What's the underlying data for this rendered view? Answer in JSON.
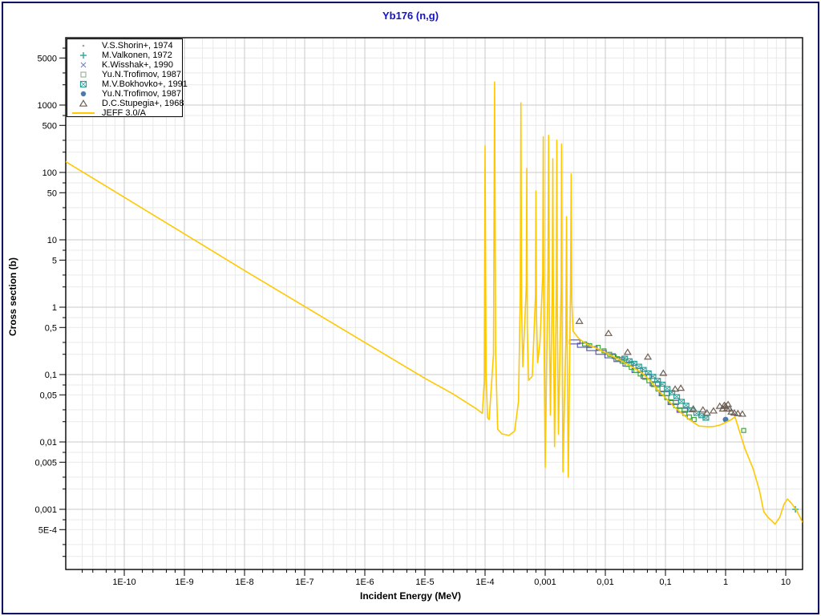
{
  "window": {
    "border_color": "#000066",
    "background": "#ffffff"
  },
  "title": {
    "text": "Yb176 (n,g)",
    "color": "#1313cd"
  },
  "axes": {
    "x": {
      "label": "Incident Energy (MeV)",
      "scale": "log",
      "min": 1e-11,
      "max": 19.1,
      "ticks": [
        {
          "exp": -10,
          "label": "1E-10"
        },
        {
          "exp": -9,
          "label": "1E-9"
        },
        {
          "exp": -8,
          "label": "1E-8"
        },
        {
          "exp": -7,
          "label": "1E-7"
        },
        {
          "exp": -6,
          "label": "1E-6"
        },
        {
          "exp": -5,
          "label": "1E-5"
        },
        {
          "exp": -4,
          "label": "1E-4"
        },
        {
          "exp": -3,
          "label": "0,001"
        },
        {
          "exp": -2,
          "label": "0,01"
        },
        {
          "exp": -1,
          "label": "0,1"
        },
        {
          "exp": 0,
          "label": "1"
        },
        {
          "exp": 1,
          "label": "10"
        }
      ]
    },
    "y": {
      "label": "Cross section (b)",
      "scale": "log",
      "min": 0.00013,
      "max": 10000,
      "ticks": [
        {
          "v": 5000,
          "label": "5000"
        },
        {
          "v": 1000,
          "label": "1000"
        },
        {
          "v": 500,
          "label": "500"
        },
        {
          "v": 100,
          "label": "100"
        },
        {
          "v": 50,
          "label": "50"
        },
        {
          "v": 10,
          "label": "10"
        },
        {
          "v": 5,
          "label": "5"
        },
        {
          "v": 1,
          "label": "1"
        },
        {
          "v": 0.5,
          "label": "0,5"
        },
        {
          "v": 0.1,
          "label": "0,1"
        },
        {
          "v": 0.05,
          "label": "0,05"
        },
        {
          "v": 0.01,
          "label": "0,01"
        },
        {
          "v": 0.005,
          "label": "0,005"
        },
        {
          "v": 0.001,
          "label": "0,001"
        },
        {
          "v": 0.0005,
          "label": "5E-4"
        }
      ]
    }
  },
  "legend": {
    "entries": [
      {
        "symbol": "dot",
        "color": "#9aa0a6",
        "label": "V.S.Shorin+, 1974"
      },
      {
        "symbol": "plus",
        "color": "#3aa99f",
        "label": "M.Valkonen, 1972"
      },
      {
        "symbol": "x",
        "color": "#7b82c4",
        "label": "K.Wisshak+, 1990"
      },
      {
        "symbol": "square-open",
        "color": "#9fb39b",
        "label": "Yu.N.Trofimov, 1987"
      },
      {
        "symbol": "square-crossed",
        "color": "#2e9e96",
        "label": "M.V.Bokhovko+, 1991"
      },
      {
        "symbol": "circle-filled",
        "color": "#4d7aad",
        "label": "Yu.N.Trofimov, 1987"
      },
      {
        "symbol": "triangle-open",
        "color": "#6f6055",
        "label": "D.C.Stupegia+, 1968"
      },
      {
        "symbol": "line",
        "color": "#ffc800",
        "label": "JEFF 3.0/A"
      }
    ]
  },
  "chart_data": {
    "type": "line+scatter",
    "title": "Yb176 (n,g)",
    "xlabel": "Incident Energy (MeV)",
    "ylabel": "Cross section (b)",
    "x_range": [
      1e-11,
      19.1
    ],
    "y_range": [
      0.00013,
      10000
    ],
    "x_units": "MeV",
    "y_units": "b",
    "grid": true,
    "legend_position": "top-left",
    "series": [
      {
        "name": "V.S.Shorin+, 1974",
        "type": "scatter",
        "symbol": "dot",
        "color": "#b0b4b8",
        "points": [
          [
            0.0055,
            0.275
          ],
          [
            0.008,
            0.232
          ],
          [
            0.012,
            0.196
          ],
          [
            0.018,
            0.162
          ],
          [
            0.027,
            0.133
          ],
          [
            0.04,
            0.107
          ]
        ]
      },
      {
        "name": "M.Valkonen, 1972",
        "type": "scatter",
        "symbol": "plus",
        "color": "#3aa99f",
        "points": [
          [
            14.5,
            0.001
          ]
        ]
      },
      {
        "name": "K.Wisshak+, 1990",
        "type": "scatter",
        "symbol": "rect-open",
        "color": "#5c5caa",
        "points": [
          [
            0.0031,
            0.305
          ],
          [
            0.0042,
            0.272
          ],
          [
            0.006,
            0.243
          ],
          [
            0.0085,
            0.214
          ],
          [
            0.012,
            0.19
          ],
          [
            0.017,
            0.167
          ],
          [
            0.024,
            0.143
          ],
          [
            0.034,
            0.115
          ],
          [
            0.048,
            0.094
          ],
          [
            0.068,
            0.073
          ],
          [
            0.096,
            0.052
          ],
          [
            0.135,
            0.0385
          ],
          [
            0.19,
            0.0295
          ]
        ]
      },
      {
        "name": "Yu.N.Trofimov, 1987",
        "type": "scatter",
        "symbol": "square-open",
        "color": "#44a344",
        "points": [
          [
            0.0045,
            0.285
          ],
          [
            0.0055,
            0.268
          ],
          [
            0.0076,
            0.253
          ],
          [
            0.0095,
            0.225
          ],
          [
            0.0118,
            0.2
          ],
          [
            0.014,
            0.185
          ],
          [
            0.016,
            0.172
          ],
          [
            0.019,
            0.158
          ],
          [
            0.023,
            0.142
          ],
          [
            0.027,
            0.128
          ],
          [
            0.032,
            0.115
          ],
          [
            0.038,
            0.102
          ],
          [
            0.045,
            0.091
          ],
          [
            0.053,
            0.081
          ],
          [
            0.063,
            0.071
          ],
          [
            0.075,
            0.061
          ],
          [
            0.088,
            0.053
          ],
          [
            0.105,
            0.0455
          ],
          [
            0.125,
            0.0395
          ],
          [
            0.148,
            0.0345
          ],
          [
            0.175,
            0.03
          ],
          [
            0.21,
            0.0265
          ],
          [
            0.25,
            0.0235
          ],
          [
            0.3,
            0.0215
          ],
          [
            2.0,
            0.0148
          ]
        ]
      },
      {
        "name": "M.V.Bokhovko+, 1991",
        "type": "scatter",
        "symbol": "square-crossed",
        "color": "#2e9e96",
        "points": [
          [
            0.021,
            0.175
          ],
          [
            0.025,
            0.16
          ],
          [
            0.03,
            0.147
          ],
          [
            0.036,
            0.133
          ],
          [
            0.043,
            0.119
          ],
          [
            0.052,
            0.106
          ],
          [
            0.062,
            0.094
          ],
          [
            0.074,
            0.082
          ],
          [
            0.089,
            0.072
          ],
          [
            0.107,
            0.062
          ],
          [
            0.128,
            0.054
          ],
          [
            0.154,
            0.047
          ],
          [
            0.185,
            0.04
          ],
          [
            0.22,
            0.035
          ],
          [
            0.27,
            0.03
          ],
          [
            0.33,
            0.0265
          ],
          [
            0.4,
            0.0245
          ],
          [
            0.47,
            0.0225
          ]
        ]
      },
      {
        "name": "Yu.N.Trofimov, 1987 (point)",
        "type": "scatter",
        "symbol": "circle-filled",
        "color": "#4d7aad",
        "points": [
          [
            1.0,
            0.0215
          ]
        ]
      },
      {
        "name": "D.C.Stupegia+, 1968",
        "type": "scatter",
        "symbol": "triangle-open",
        "color": "#6f6055",
        "points": [
          [
            0.0037,
            0.62
          ],
          [
            0.0113,
            0.41
          ],
          [
            0.0235,
            0.215
          ],
          [
            0.051,
            0.183
          ],
          [
            0.092,
            0.105
          ],
          [
            0.145,
            0.061
          ],
          [
            0.18,
            0.063
          ],
          [
            0.29,
            0.031
          ],
          [
            0.42,
            0.03
          ],
          [
            0.49,
            0.027
          ],
          [
            0.63,
            0.029
          ],
          [
            0.8,
            0.034
          ],
          [
            0.9,
            0.031
          ],
          [
            0.95,
            0.035
          ],
          [
            1.0,
            0.034
          ],
          [
            1.05,
            0.031
          ],
          [
            1.1,
            0.036
          ],
          [
            1.15,
            0.031
          ],
          [
            1.25,
            0.028
          ],
          [
            1.4,
            0.027
          ],
          [
            1.6,
            0.0265
          ],
          [
            1.9,
            0.026
          ]
        ]
      },
      {
        "name": "JEFF 3.0/A",
        "type": "line",
        "symbol": "line",
        "color": "#ffc800",
        "points": [
          [
            1.03e-11,
            147
          ],
          [
            1e-08,
            3.5
          ],
          [
            1e-06,
            0.3
          ],
          [
            1e-05,
            0.088
          ],
          [
            2.9e-05,
            0.052
          ],
          [
            7.2e-05,
            0.031
          ],
          [
            9e-05,
            0.0265
          ],
          [
            9.7e-05,
            0.08
          ],
          [
            0.0001,
            248
          ],
          [
            0.000104,
            0.1
          ],
          [
            0.00011,
            0.023
          ],
          [
            0.000117,
            0.0215
          ],
          [
            0.000138,
            0.2
          ],
          [
            0.000144,
            2200
          ],
          [
            0.00015,
            0.2
          ],
          [
            0.000162,
            0.0155
          ],
          [
            0.00019,
            0.0132
          ],
          [
            0.00025,
            0.0125
          ],
          [
            0.00031,
            0.0145
          ],
          [
            0.00036,
            0.04
          ],
          [
            0.000385,
            1.5
          ],
          [
            0.000395,
            1080
          ],
          [
            0.000405,
            1.0
          ],
          [
            0.000425,
            0.13
          ],
          [
            0.000485,
            2
          ],
          [
            0.000495,
            115
          ],
          [
            0.000505,
            0.5
          ],
          [
            0.00053,
            0.082
          ],
          [
            0.00061,
            0.095
          ],
          [
            0.00069,
            1.5
          ],
          [
            0.0007,
            53
          ],
          [
            0.000715,
            0.8
          ],
          [
            0.00075,
            0.15
          ],
          [
            0.00082,
            0.3
          ],
          [
            0.00091,
            3
          ],
          [
            0.00093,
            340
          ],
          [
            0.00095,
            0.8
          ],
          [
            0.001,
            0.0042
          ],
          [
            0.00111,
            3
          ],
          [
            0.00114,
            355
          ],
          [
            0.00117,
            0.8
          ],
          [
            0.00122,
            0.025
          ],
          [
            0.00131,
            2
          ],
          [
            0.00134,
            160
          ],
          [
            0.00137,
            0.5
          ],
          [
            0.00143,
            0.0085
          ],
          [
            0.00153,
            2
          ],
          [
            0.00156,
            300
          ],
          [
            0.00159,
            0.8
          ],
          [
            0.00166,
            0.013
          ],
          [
            0.00184,
            2
          ],
          [
            0.00187,
            265
          ],
          [
            0.00191,
            0.5
          ],
          [
            0.00197,
            0.0036
          ],
          [
            0.0022,
            0.3
          ],
          [
            0.00226,
            22
          ],
          [
            0.00232,
            0.3
          ],
          [
            0.00242,
            0.003
          ],
          [
            0.00264,
            2
          ],
          [
            0.0027,
            95
          ],
          [
            0.00277,
            1.2
          ],
          [
            0.0029,
            0.44
          ],
          [
            0.0036,
            0.345
          ],
          [
            0.0044,
            0.3
          ],
          [
            0.0055,
            0.27
          ],
          [
            0.0069,
            0.25
          ],
          [
            0.0107,
            0.205
          ],
          [
            0.0167,
            0.168
          ],
          [
            0.026,
            0.135
          ],
          [
            0.0407,
            0.106
          ],
          [
            0.055,
            0.082
          ],
          [
            0.075,
            0.059
          ],
          [
            0.102,
            0.0445
          ],
          [
            0.138,
            0.0335
          ],
          [
            0.187,
            0.0265
          ],
          [
            0.25,
            0.0215
          ],
          [
            0.36,
            0.0172
          ],
          [
            0.53,
            0.0168
          ],
          [
            0.65,
            0.017
          ],
          [
            0.83,
            0.018
          ],
          [
            1.0,
            0.0195
          ],
          [
            1.24,
            0.0215
          ],
          [
            1.43,
            0.0235
          ],
          [
            1.66,
            0.0155
          ],
          [
            2.1,
            0.0079
          ],
          [
            2.87,
            0.004
          ],
          [
            3.67,
            0.0019
          ],
          [
            4.3,
            0.00093
          ],
          [
            5.0,
            0.00077
          ],
          [
            5.9,
            0.00067
          ],
          [
            6.65,
            0.0006
          ],
          [
            8.0,
            0.00077
          ],
          [
            9.4,
            0.0012
          ],
          [
            10.7,
            0.00142
          ],
          [
            12.5,
            0.00122
          ],
          [
            15.0,
            0.00098
          ],
          [
            17.5,
            0.00075
          ],
          [
            19.0,
            0.00064
          ]
        ]
      }
    ]
  }
}
